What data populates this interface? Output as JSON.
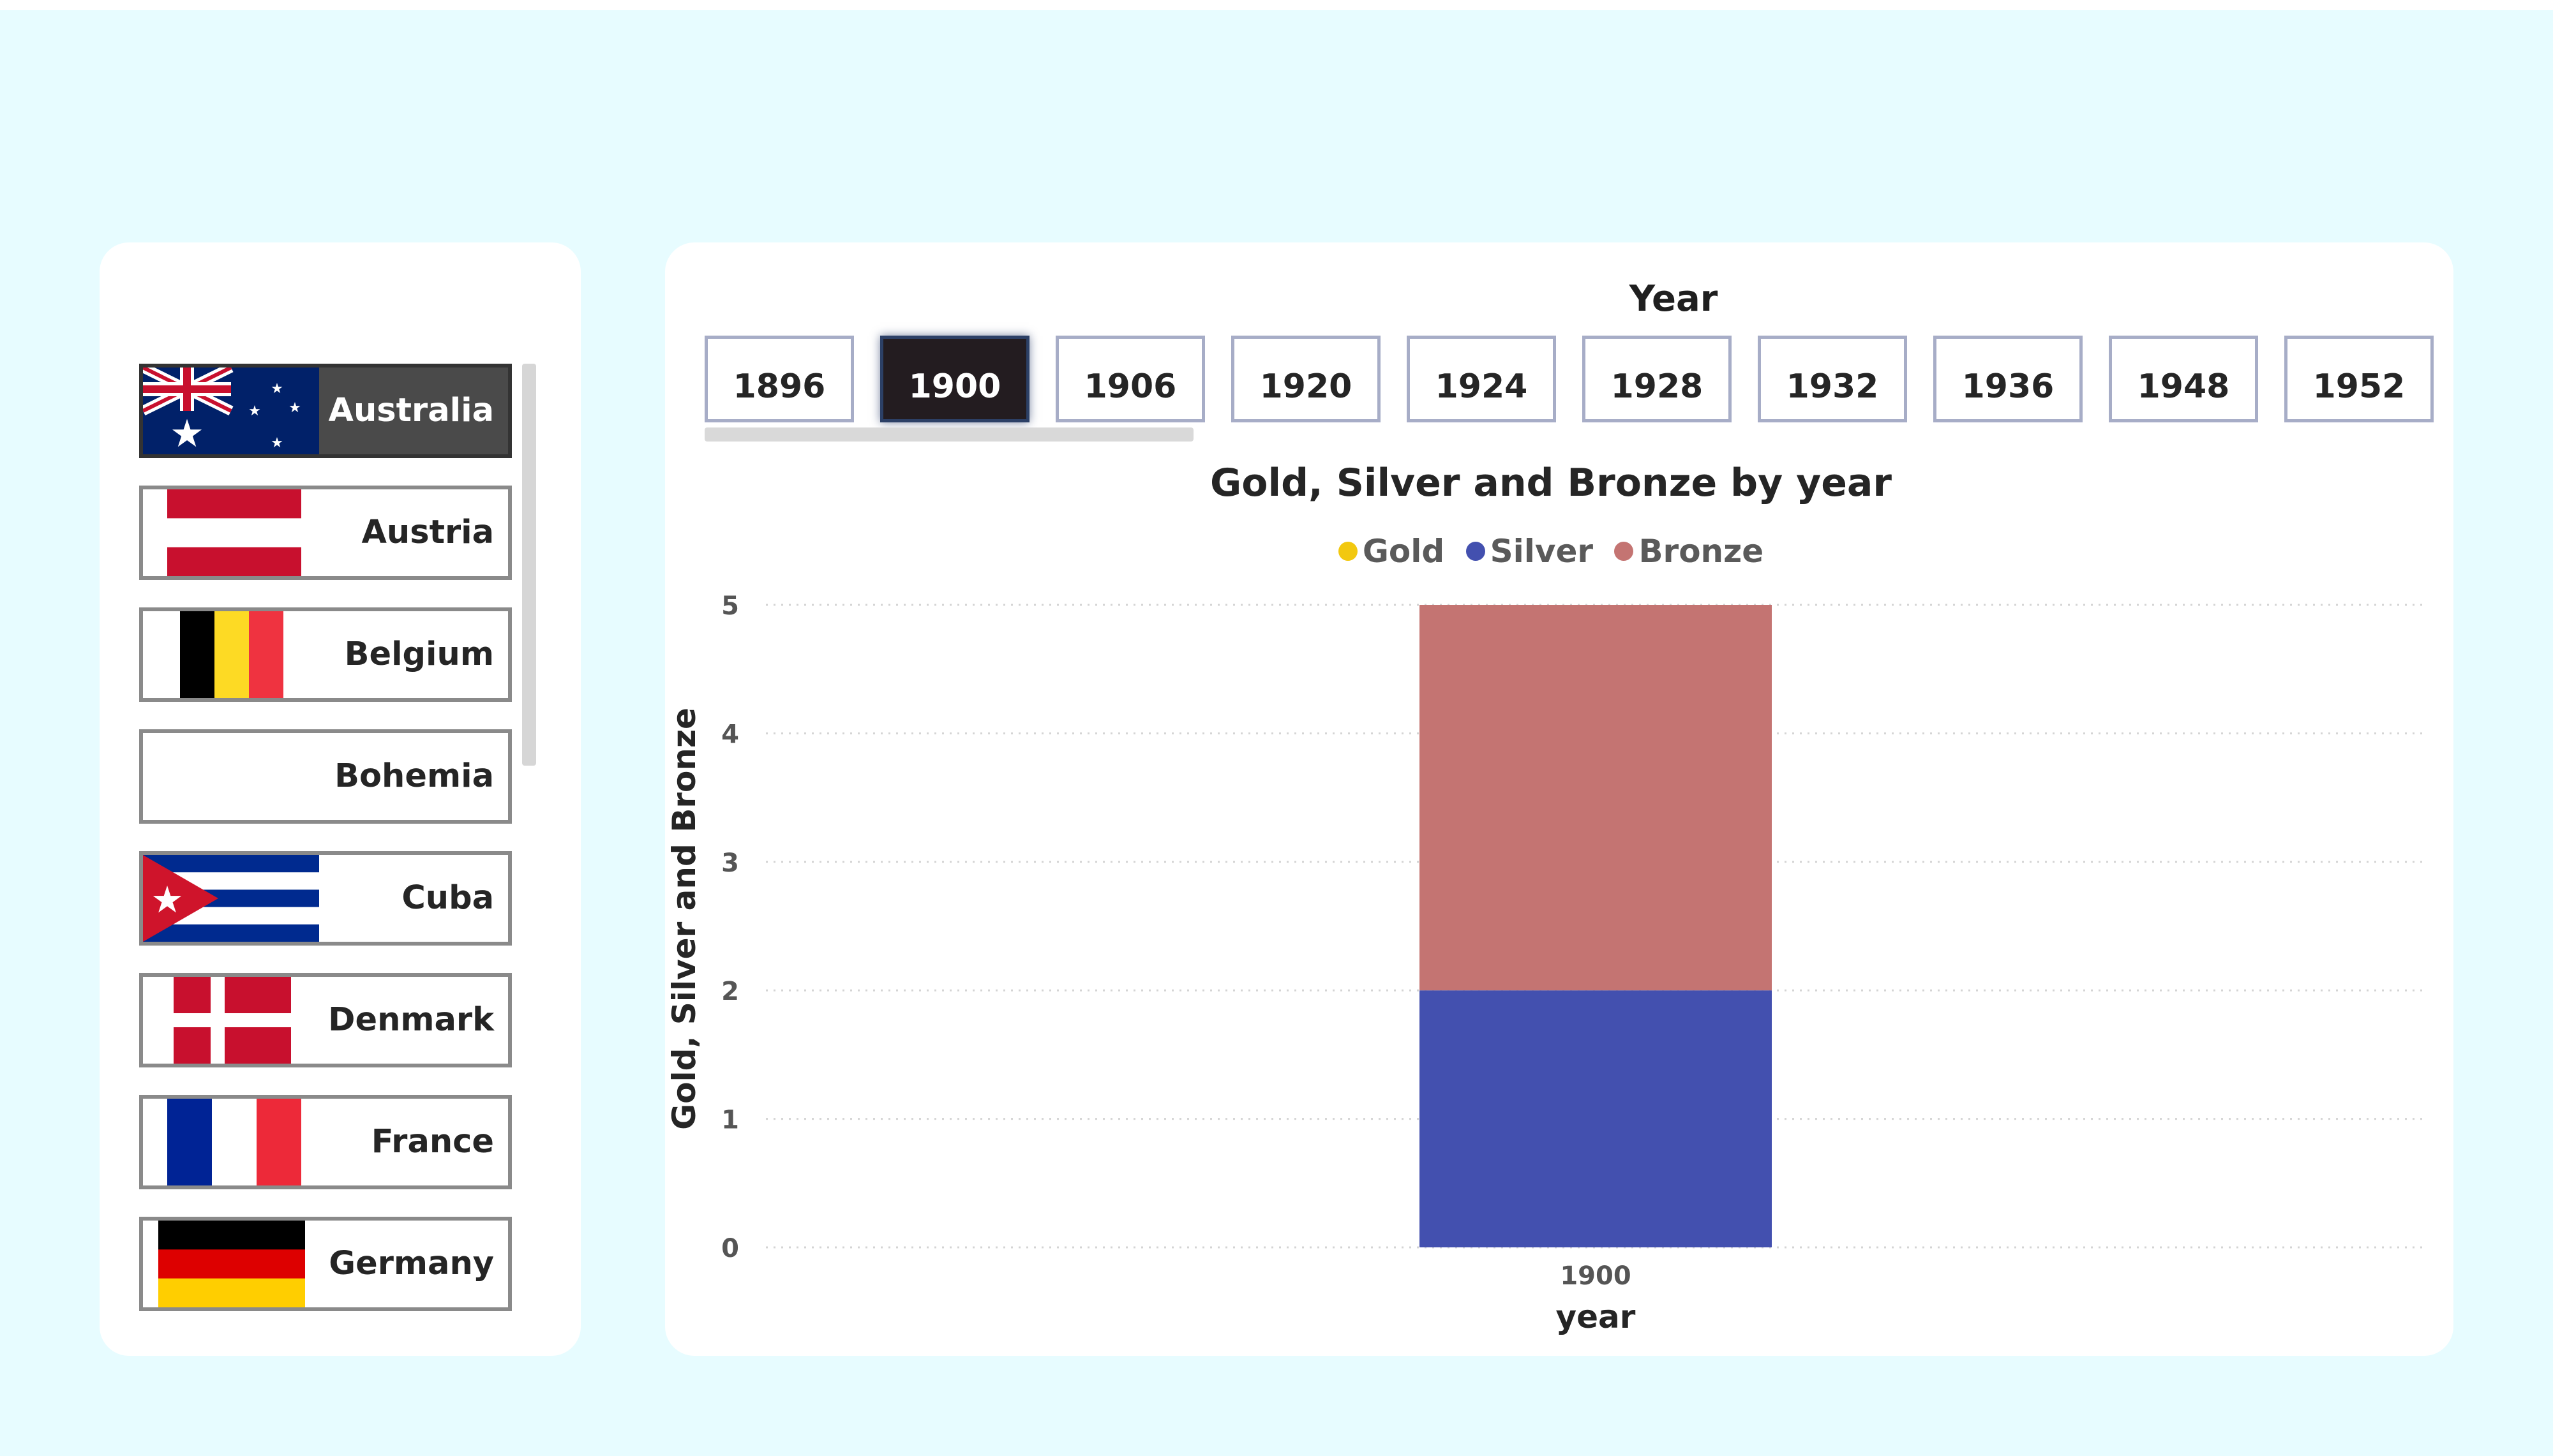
{
  "slicer": {
    "countries": [
      {
        "name": "Australia",
        "flag": "australia",
        "selected": true
      },
      {
        "name": "Austria",
        "flag": "austria",
        "selected": false
      },
      {
        "name": "Belgium",
        "flag": "belgium",
        "selected": false
      },
      {
        "name": "Bohemia",
        "flag": "none",
        "selected": false
      },
      {
        "name": "Cuba",
        "flag": "cuba",
        "selected": false
      },
      {
        "name": "Denmark",
        "flag": "denmark",
        "selected": false
      },
      {
        "name": "France",
        "flag": "france",
        "selected": false
      },
      {
        "name": "Germany",
        "flag": "germany",
        "selected": false
      }
    ]
  },
  "year_slicer": {
    "title": "Year",
    "years": [
      "1896",
      "1900",
      "1906",
      "1920",
      "1924",
      "1928",
      "1932",
      "1936",
      "1948",
      "1952"
    ],
    "selected": "1900"
  },
  "colors": {
    "gold": "#f2c80f",
    "silver": "#4350af",
    "bronze": "#c47472"
  },
  "chart_data": {
    "type": "bar",
    "stacked": true,
    "title": "Gold, Silver and Bronze by year",
    "xlabel": "year",
    "ylabel": "Gold, Silver and Bronze",
    "categories": [
      "1900"
    ],
    "series": [
      {
        "name": "Gold",
        "values": [
          0
        ]
      },
      {
        "name": "Silver",
        "values": [
          2
        ]
      },
      {
        "name": "Bronze",
        "values": [
          3
        ]
      }
    ],
    "ylim": [
      0,
      5
    ],
    "yticks": [
      "0",
      "1",
      "2",
      "3",
      "4",
      "5"
    ],
    "legend_position": "top-center",
    "grid": true
  }
}
